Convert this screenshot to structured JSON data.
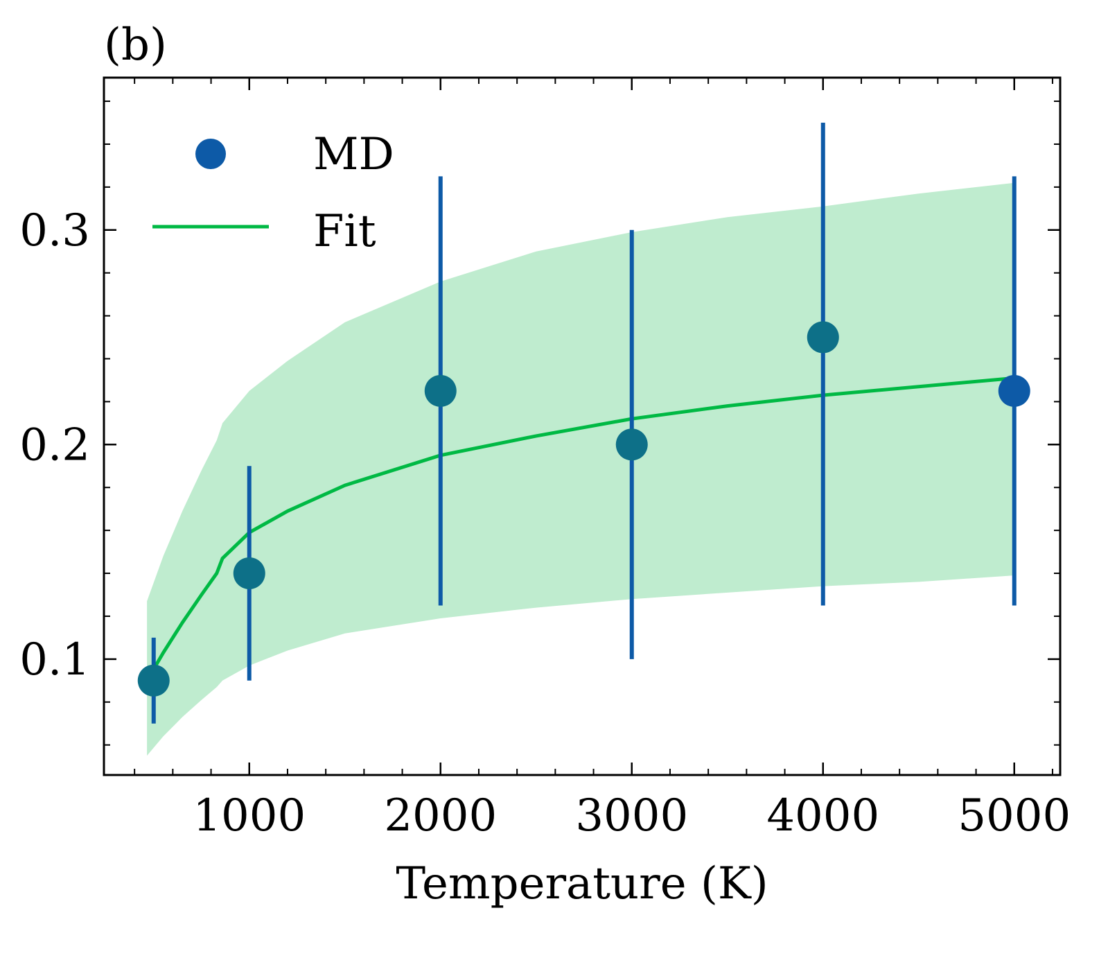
{
  "panel_label": "(b)",
  "colors": {
    "md": "#0d5aa7",
    "md_overlap": "#0d7088",
    "fit": "#00b944",
    "band": "#bfeccf",
    "axis": "#000000"
  },
  "chart_data": {
    "type": "scatter",
    "title": "",
    "xlabel": "Temperature (K)",
    "ylabel": "",
    "xlim": [
      240,
      5240
    ],
    "ylim": [
      0.046,
      0.371
    ],
    "x_ticks": [
      1000,
      2000,
      3000,
      4000,
      5000
    ],
    "x_tick_labels": [
      "1000",
      "2000",
      "3000",
      "4000",
      "5000"
    ],
    "x_minor_step": 200,
    "y_ticks": [
      0.1,
      0.2,
      0.3
    ],
    "y_tick_labels": [
      "0.1",
      "0.2",
      "0.3"
    ],
    "y_minor_step": 0.02,
    "legend": {
      "position": "top-left",
      "entries": [
        "MD",
        "Fit"
      ]
    },
    "series": [
      {
        "name": "MD",
        "kind": "points_with_errorbars",
        "x": [
          500,
          1000,
          2000,
          3000,
          4000,
          5000
        ],
        "y": [
          0.09,
          0.14,
          0.225,
          0.2,
          0.25,
          0.225
        ],
        "yerr_low": [
          0.07,
          0.09,
          0.125,
          0.1,
          0.125,
          0.125
        ],
        "yerr_high": [
          0.11,
          0.19,
          0.325,
          0.3,
          0.35,
          0.325
        ]
      },
      {
        "name": "Fit",
        "kind": "line",
        "x": [
          465,
          550,
          650,
          750,
          830,
          860,
          1000,
          1200,
          1500,
          2000,
          2500,
          3000,
          3500,
          4000,
          4500,
          5000
        ],
        "y": [
          0.09,
          0.103,
          0.117,
          0.13,
          0.14,
          0.147,
          0.159,
          0.169,
          0.181,
          0.195,
          0.204,
          0.212,
          0.218,
          0.223,
          0.227,
          0.231
        ]
      },
      {
        "name": "Fit band",
        "kind": "band",
        "x": [
          465,
          550,
          650,
          750,
          830,
          860,
          1000,
          1200,
          1500,
          2000,
          2500,
          3000,
          3500,
          4000,
          4500,
          5000
        ],
        "y_low": [
          0.055,
          0.064,
          0.073,
          0.081,
          0.087,
          0.09,
          0.097,
          0.104,
          0.112,
          0.119,
          0.124,
          0.128,
          0.131,
          0.134,
          0.136,
          0.139
        ],
        "y_high": [
          0.127,
          0.148,
          0.169,
          0.188,
          0.202,
          0.21,
          0.225,
          0.239,
          0.257,
          0.276,
          0.29,
          0.299,
          0.306,
          0.311,
          0.317,
          0.322
        ]
      }
    ]
  }
}
